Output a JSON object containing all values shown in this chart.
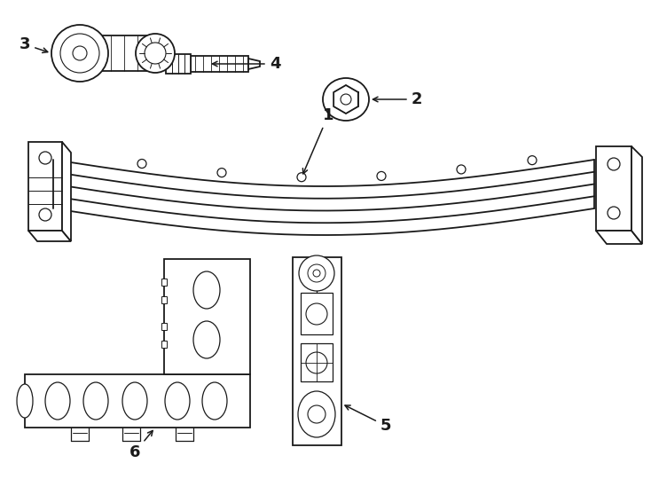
{
  "background_color": "#ffffff",
  "line_color": "#1a1a1a",
  "figsize": [
    7.34,
    5.4
  ],
  "dpi": 100
}
